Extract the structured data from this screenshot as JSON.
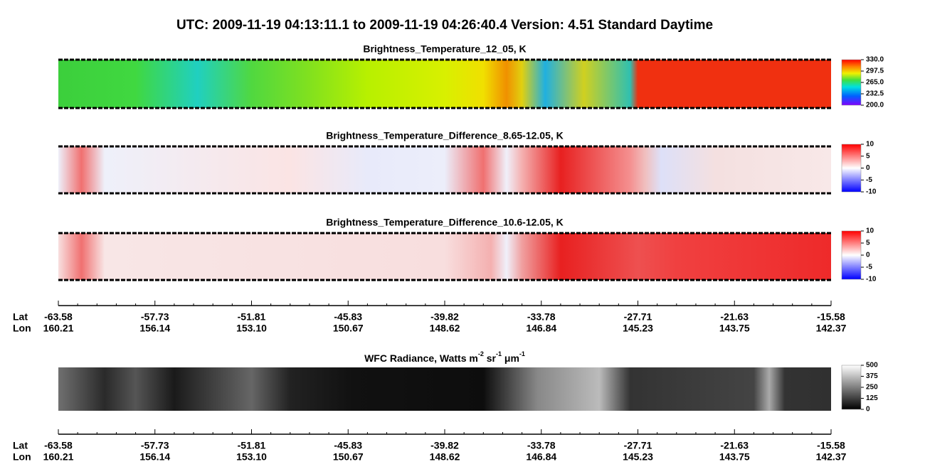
{
  "title": "UTC:  2009-11-19   04:13:11.1  to  2009-11-19   04:26:40.4    Version: 4.51  Standard Daytime",
  "panels": [
    {
      "title": "Brightness_Temperature_12_05, K",
      "colorbar": [
        "330.0",
        "297.5",
        "265.0",
        "232.5",
        "200.0"
      ]
    },
    {
      "title": "Brightness_Temperature_Difference_8.65-12.05, K",
      "colorbar": [
        "10",
        "5",
        "0",
        "-5",
        "-10"
      ]
    },
    {
      "title": "Brightness_Temperature_Difference_10.6-12.05, K",
      "colorbar": [
        "10",
        "5",
        "0",
        "-5",
        "-10"
      ]
    },
    {
      "title_parts": [
        "WFC Radiance, Watts m",
        "-2",
        " sr",
        "-1",
        " μm",
        "-1"
      ],
      "colorbar": [
        "500",
        "375",
        "250",
        "125",
        "0"
      ]
    }
  ],
  "axes": [
    {
      "lat_label": "Lat",
      "lon_label": "Lon",
      "lat": [
        "-63.58",
        "-57.73",
        "-51.81",
        "-45.83",
        "-39.82",
        "-33.78",
        "-27.71",
        "-21.63",
        "-15.58"
      ],
      "lon": [
        "160.21",
        "156.14",
        "153.10",
        "150.67",
        "148.62",
        "146.84",
        "145.23",
        "143.75",
        "142.37"
      ]
    },
    {
      "lat_label": "Lat",
      "lon_label": "Lon",
      "lat": [
        "-63.58",
        "-57.73",
        "-51.81",
        "-45.83",
        "-39.82",
        "-33.78",
        "-27.71",
        "-21.63",
        "-15.58"
      ],
      "lon": [
        "160.21",
        "156.14",
        "153.10",
        "150.67",
        "148.62",
        "146.84",
        "145.23",
        "143.75",
        "142.37"
      ]
    }
  ]
}
